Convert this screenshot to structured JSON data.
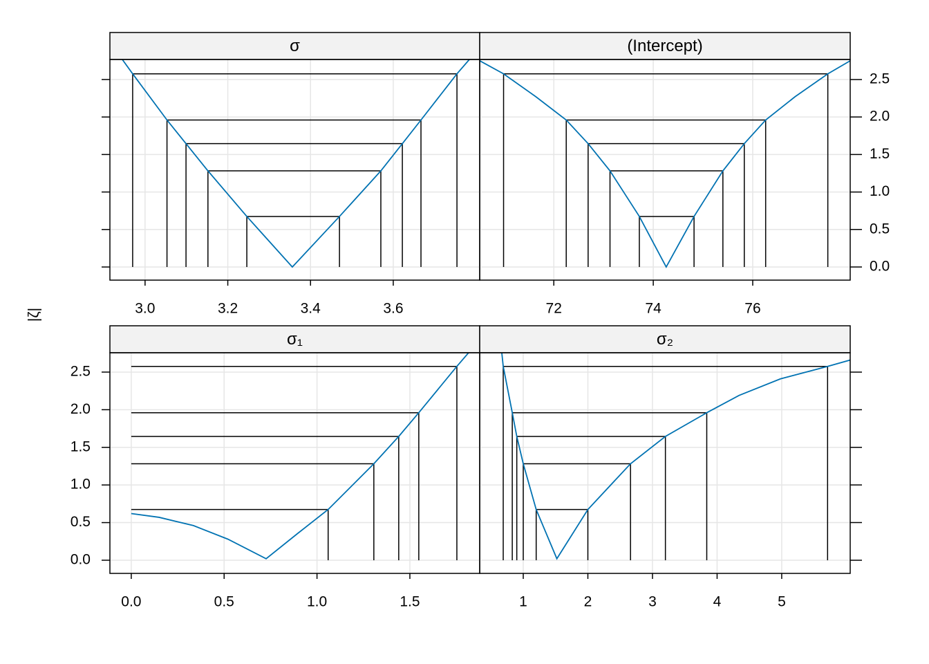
{
  "ylabel": "|ζ|",
  "chart_data": [
    {
      "type": "line",
      "title": "σ",
      "color": "#0072b2",
      "grid": true,
      "y_axis_side": "none",
      "x": [
        2.945,
        2.97,
        3.053,
        3.099,
        3.152,
        3.246,
        3.356,
        3.47,
        3.57,
        3.622,
        3.667,
        3.754,
        3.784
      ],
      "values": [
        2.767,
        2.576,
        1.96,
        1.645,
        1.282,
        0.674,
        0,
        0.674,
        1.282,
        1.645,
        1.96,
        2.576,
        2.767
      ],
      "levels": [
        0.674,
        1.282,
        1.645,
        1.96,
        2.576
      ],
      "ci_lower": [
        3.246,
        3.152,
        3.099,
        3.053,
        2.97
      ],
      "ci_upper": [
        3.47,
        3.57,
        3.622,
        3.667,
        3.754
      ],
      "lower_drop_lines": true,
      "xlim": [
        2.915,
        3.809
      ],
      "ylim": [
        -0.175,
        2.767
      ],
      "xticks": [
        {
          "value": 3.0,
          "label": "3.0"
        },
        3.2,
        3.4,
        3.6
      ]
    },
    {
      "type": "line",
      "title": "(Intercept)",
      "color": "#0072b2",
      "grid": true,
      "y_axis_side": "right",
      "x": [
        70.51,
        70.99,
        71.64,
        72.25,
        72.69,
        73.13,
        73.72,
        74.26,
        74.82,
        75.4,
        75.83,
        76.26,
        76.85,
        77.51,
        77.96
      ],
      "values": [
        2.75,
        2.576,
        2.27,
        1.96,
        1.645,
        1.282,
        0.674,
        0,
        0.674,
        1.282,
        1.645,
        1.96,
        2.27,
        2.576,
        2.75
      ],
      "levels": [
        0.674,
        1.282,
        1.645,
        1.96,
        2.576
      ],
      "ci_lower": [
        73.72,
        73.13,
        72.69,
        72.25,
        70.99
      ],
      "ci_upper": [
        74.82,
        75.4,
        75.83,
        76.26,
        77.51
      ],
      "lower_drop_lines": true,
      "xlim": [
        70.51,
        77.96
      ],
      "ylim": [
        -0.175,
        2.767
      ],
      "xticks": [
        72,
        74,
        76
      ],
      "yticks": [
        {
          "value": 0,
          "label": "0.0"
        },
        0.5,
        {
          "value": 1,
          "label": "1.0"
        },
        1.5,
        {
          "value": 2,
          "label": "2.0"
        },
        2.5
      ]
    },
    {
      "type": "line",
      "title": "σ₁",
      "color": "#0072b2",
      "grid": true,
      "y_axis_side": "left",
      "x": [
        0.0,
        0.15,
        0.335,
        0.52,
        0.726,
        0.893,
        1.06,
        1.306,
        1.44,
        1.548,
        1.753,
        1.816
      ],
      "values": [
        0.62,
        0.57,
        0.46,
        0.28,
        0.02,
        0.35,
        0.674,
        1.282,
        1.645,
        1.96,
        2.576,
        2.757
      ],
      "levels": [
        0.674,
        1.282,
        1.645,
        1.96,
        2.576
      ],
      "ci_lower": [
        0,
        0,
        0,
        0,
        0
      ],
      "ci_upper": [
        1.06,
        1.306,
        1.44,
        1.548,
        1.753
      ],
      "lower_drop_lines": false,
      "xlim": [
        -0.115,
        1.876
      ],
      "ylim": [
        -0.175,
        2.757
      ],
      "xticks": [
        {
          "value": 0,
          "label": "0.0"
        },
        0.5,
        {
          "value": 1,
          "label": "1.0"
        },
        1.5
      ],
      "yticks": [
        {
          "value": 0,
          "label": "0.0"
        },
        0.5,
        {
          "value": 1,
          "label": "1.0"
        },
        1.5,
        {
          "value": 2,
          "label": "2.0"
        },
        2.5
      ]
    },
    {
      "type": "line",
      "title": "σ₂",
      "color": "#0072b2",
      "grid": true,
      "y_axis_side": "none",
      "x": [
        0.668,
        0.69,
        0.83,
        0.9,
        1.0,
        1.2,
        1.52,
        2.0,
        2.66,
        3.2,
        3.84,
        4.34,
        4.98,
        5.71,
        6.06
      ],
      "values": [
        2.757,
        2.576,
        1.96,
        1.645,
        1.282,
        0.674,
        0.02,
        0.674,
        1.282,
        1.645,
        1.96,
        2.19,
        2.41,
        2.576,
        2.66
      ],
      "levels": [
        0.674,
        1.282,
        1.645,
        1.96,
        2.576
      ],
      "ci_lower": [
        1.2,
        1.0,
        0.9,
        0.83,
        0.69
      ],
      "ci_upper": [
        2.0,
        2.66,
        3.2,
        3.84,
        5.71
      ],
      "lower_drop_lines": true,
      "xlim": [
        0.326,
        6.06
      ],
      "ylim": [
        -0.175,
        2.757
      ],
      "xticks": [
        1,
        2,
        3,
        4,
        5
      ]
    }
  ]
}
